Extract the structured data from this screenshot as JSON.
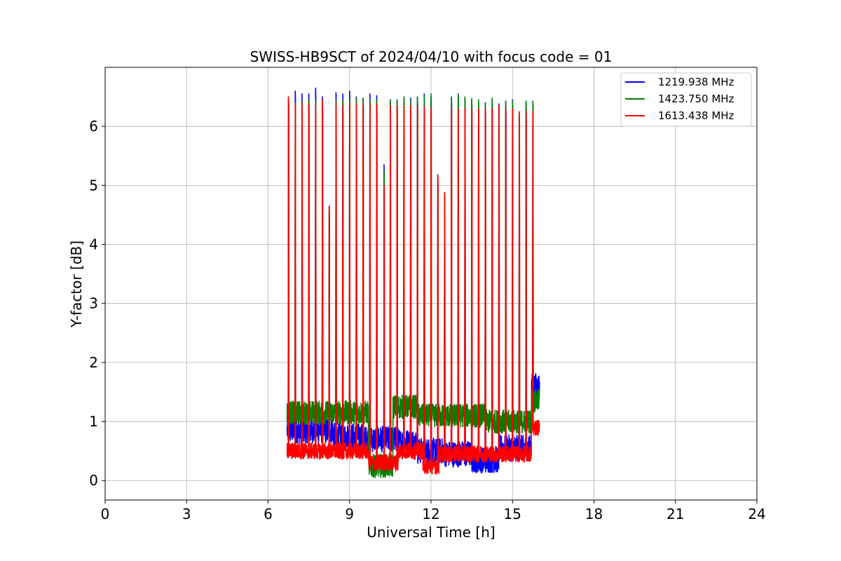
{
  "chart_data": {
    "type": "line",
    "title": "SWISS-HB9SCT of 2024/04/10 with focus code = 01",
    "xlabel": "Universal Time [h]",
    "ylabel": "Y-factor [dB]",
    "xlim": [
      0,
      24
    ],
    "ylim": [
      -0.33,
      7.0
    ],
    "xticks": [
      0,
      3,
      6,
      9,
      12,
      15,
      18,
      21,
      24
    ],
    "yticks": [
      0,
      1,
      2,
      3,
      4,
      5,
      6
    ],
    "grid": true,
    "legend_position": "top-right",
    "data_start_h": 6.7,
    "data_end_h": 16.0,
    "series": [
      {
        "name": "1219.938 MHz",
        "color": "#0000ff",
        "baseline_segments": [
          [
            6.7,
            8.4,
            0.85
          ],
          [
            8.4,
            9.5,
            0.75
          ],
          [
            9.5,
            10.8,
            0.7
          ],
          [
            10.8,
            11.5,
            0.65
          ],
          [
            11.5,
            12.5,
            0.5
          ],
          [
            12.5,
            13.5,
            0.45
          ],
          [
            13.5,
            14.5,
            0.35
          ],
          [
            14.5,
            15.7,
            0.55
          ],
          [
            15.7,
            16.0,
            1.6
          ]
        ]
      },
      {
        "name": "1423.750 MHz",
        "color": "#008000",
        "baseline_segments": [
          [
            6.7,
            9.7,
            1.15
          ],
          [
            9.7,
            10.6,
            0.25
          ],
          [
            10.6,
            11.5,
            1.25
          ],
          [
            11.5,
            12.8,
            1.1
          ],
          [
            12.8,
            14.0,
            1.1
          ],
          [
            14.0,
            15.7,
            1.0
          ],
          [
            15.7,
            16.0,
            1.35
          ]
        ]
      },
      {
        "name": "1613.438 MHz",
        "color": "#ff0000",
        "baseline_segments": [
          [
            6.7,
            9.7,
            0.5
          ],
          [
            9.7,
            10.8,
            0.3
          ],
          [
            10.8,
            11.7,
            0.5
          ],
          [
            11.7,
            12.3,
            0.25
          ],
          [
            12.3,
            15.7,
            0.45
          ],
          [
            15.7,
            16.0,
            0.9
          ]
        ]
      }
    ],
    "spikes_h": [
      6.75,
      7.0,
      7.25,
      7.5,
      7.75,
      8.0,
      8.25,
      8.5,
      8.75,
      9.0,
      9.25,
      9.5,
      9.75,
      10.0,
      10.27,
      10.5,
      10.75,
      11.0,
      11.25,
      11.5,
      11.75,
      12.0,
      12.25,
      12.5,
      12.75,
      13.0,
      13.25,
      13.5,
      13.75,
      14.0,
      14.25,
      14.5,
      14.75,
      15.0,
      15.25,
      15.5,
      15.75
    ],
    "spike_peaks": [
      [
        6.48,
        6.6,
        6.55,
        6.55,
        6.65,
        6.5,
        4.65,
        6.57,
        6.55,
        6.6,
        6.5,
        6.48,
        6.55,
        6.52,
        5.35,
        6.45,
        6.45,
        6.5,
        6.48,
        6.5,
        6.55,
        6.5,
        5.18,
        4.88,
        6.5,
        6.55,
        6.47,
        6.45,
        6.42,
        6.4,
        6.45,
        6.38,
        6.42,
        6.45,
        6.22,
        6.42,
        6.42
      ],
      [
        6.47,
        6.4,
        6.43,
        6.45,
        6.45,
        6.45,
        4.62,
        6.45,
        6.45,
        6.47,
        6.48,
        6.47,
        6.45,
        6.46,
        5.25,
        6.45,
        6.45,
        6.5,
        6.45,
        6.5,
        6.52,
        6.55,
        5.15,
        4.85,
        6.5,
        6.55,
        6.5,
        6.47,
        6.45,
        6.4,
        6.48,
        6.35,
        6.43,
        6.43,
        6.1,
        6.43,
        6.43
      ],
      [
        6.5,
        6.38,
        6.4,
        6.38,
        6.38,
        6.45,
        4.65,
        6.4,
        6.35,
        6.4,
        6.38,
        6.38,
        6.38,
        6.38,
        5.0,
        6.35,
        6.35,
        6.35,
        6.35,
        6.35,
        6.33,
        6.3,
        5.17,
        4.88,
        6.3,
        6.3,
        6.3,
        6.3,
        6.3,
        6.3,
        6.3,
        6.35,
        6.3,
        6.3,
        6.25,
        6.25,
        6.25
      ]
    ]
  }
}
